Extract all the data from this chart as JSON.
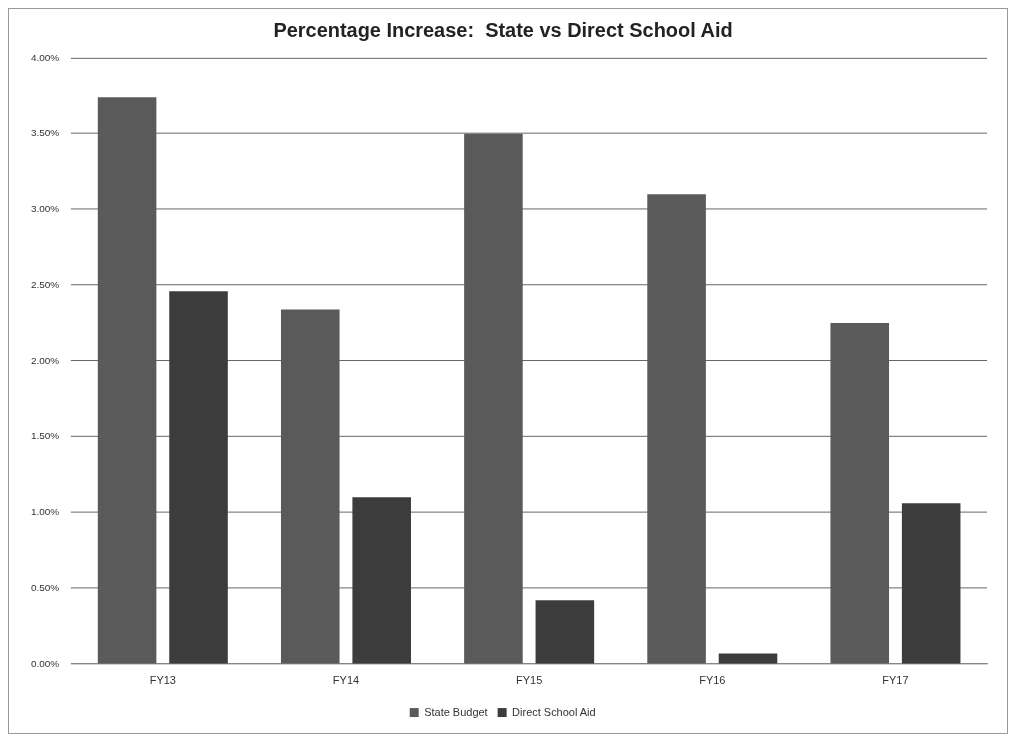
{
  "chart_data": {
    "type": "bar",
    "title": "Percentage Increase:  State vs Direct School Aid",
    "categories": [
      "FY13",
      "FY14",
      "FY15",
      "FY16",
      "FY17"
    ],
    "series": [
      {
        "name": "State Budget",
        "color": "#5a5a5a",
        "values": [
          3.74,
          2.34,
          3.5,
          3.1,
          2.25
        ]
      },
      {
        "name": "Direct School Aid",
        "color": "#3c3c3c",
        "values": [
          2.46,
          1.1,
          0.42,
          0.07,
          1.06
        ]
      }
    ],
    "ylim": [
      0,
      4
    ],
    "yticks": [
      {
        "value": 0,
        "label": "0.00%"
      },
      {
        "value": 0.5,
        "label": "0.50%"
      },
      {
        "value": 1,
        "label": "1.00%"
      },
      {
        "value": 1.5,
        "label": "1.50%"
      },
      {
        "value": 2,
        "label": "2.00%"
      },
      {
        "value": 2.5,
        "label": "2.50%"
      },
      {
        "value": 3,
        "label": "3.00%"
      },
      {
        "value": 3.5,
        "label": "3.50%"
      },
      {
        "value": 4,
        "label": "4.00%"
      }
    ],
    "grid": "y",
    "legend": "bottom"
  }
}
